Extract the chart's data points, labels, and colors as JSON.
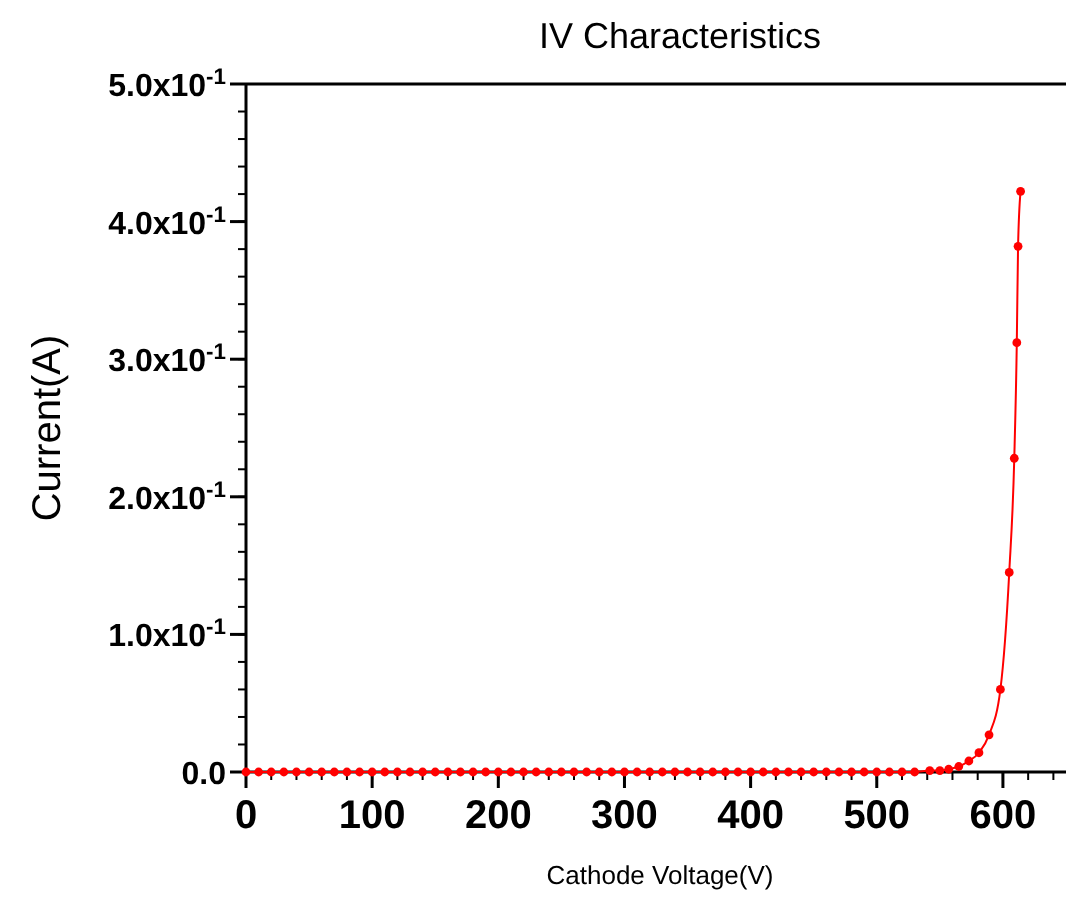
{
  "chart_data": {
    "type": "line",
    "title": "IV Characteristics",
    "xlabel": "Cathode Voltage(V)",
    "ylabel": "Current(A)",
    "x": [
      0,
      10,
      20,
      30,
      40,
      50,
      60,
      70,
      80,
      90,
      100,
      110,
      120,
      130,
      140,
      150,
      160,
      170,
      180,
      190,
      200,
      210,
      220,
      230,
      240,
      250,
      260,
      270,
      280,
      290,
      300,
      310,
      320,
      330,
      340,
      350,
      360,
      370,
      380,
      390,
      400,
      410,
      420,
      430,
      440,
      450,
      460,
      470,
      480,
      490,
      500,
      510,
      520,
      530,
      542,
      550,
      557,
      565,
      573,
      581,
      589,
      598,
      605,
      609,
      611,
      612,
      614
    ],
    "series": [
      {
        "color": "#ff0000",
        "values": [
          0,
          0,
          0,
          0,
          0,
          0,
          0,
          0,
          0,
          0,
          0,
          0,
          0,
          0,
          0,
          0,
          0,
          0,
          0,
          0,
          0,
          0,
          0,
          0,
          0,
          0,
          0,
          0,
          0,
          0,
          0,
          0,
          0,
          0,
          0,
          0,
          0,
          0,
          0,
          0,
          0,
          0,
          0,
          0,
          0,
          0,
          0,
          0,
          0,
          0,
          0,
          0,
          0,
          0,
          0.001,
          0.001,
          0.002,
          0.004,
          0.008,
          0.014,
          0.027,
          0.06,
          0.145,
          0.228,
          0.312,
          0.382,
          0.422
        ]
      }
    ],
    "marker": "circle",
    "line_style": "solid",
    "xlim": [
      0,
      650
    ],
    "xticks": [
      0,
      100,
      200,
      300,
      400,
      500,
      600
    ],
    "ylim": [
      0,
      0.5
    ],
    "yticks": [
      {
        "value": 0,
        "label": "0.0"
      },
      {
        "value": 0.1,
        "label": "1.0x10$^{-1}$"
      },
      {
        "value": 0.2,
        "label": "2.0x10$^{-1}$"
      },
      {
        "value": 0.3,
        "label": "3.0x10$^{-1}$"
      },
      {
        "value": 0.4,
        "label": "4.0x10$^{-1}$"
      },
      {
        "value": 0.5,
        "label": "5.0x10$^{-1}$"
      }
    ]
  }
}
